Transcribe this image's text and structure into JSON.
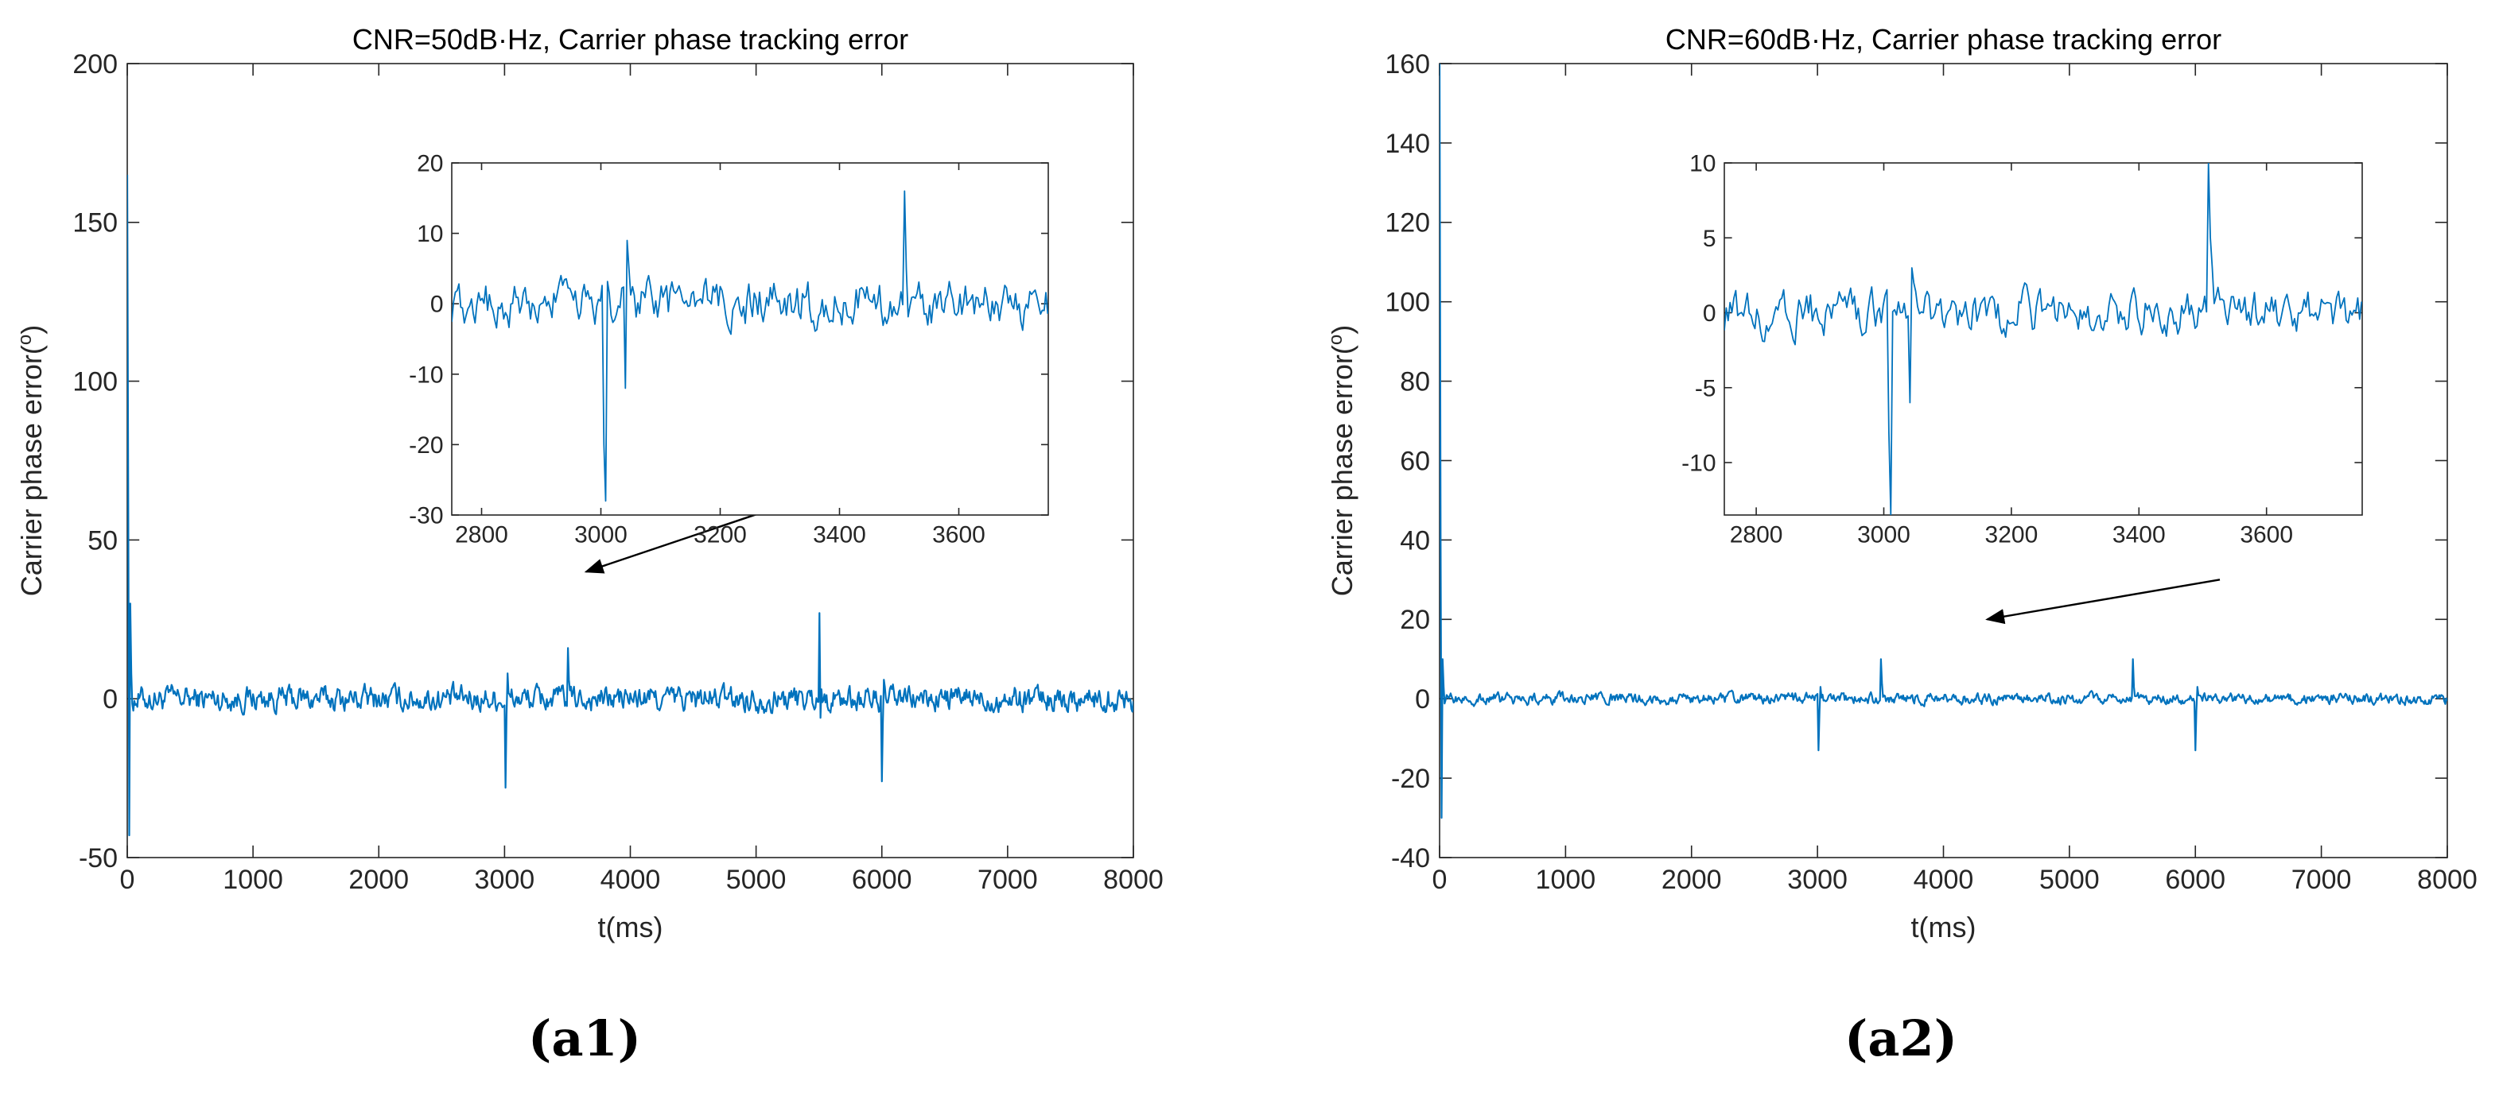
{
  "chart_data": [
    {
      "type": "line",
      "panel_label": "(a1)",
      "title": "CNR=50dB·Hz, Carrier phase tracking error",
      "xlabel": "t(ms)",
      "ylabel": "Carrier phase error(",
      "ylabel_unit": "o",
      "ylabel_suffix": ")",
      "xlim": [
        0,
        8000
      ],
      "ylim": [
        -50,
        200
      ],
      "xticks": [
        0,
        1000,
        2000,
        3000,
        4000,
        5000,
        6000,
        7000,
        8000
      ],
      "yticks": [
        -50,
        0,
        50,
        100,
        150,
        200
      ],
      "grid": false,
      "series_color": "#0072bd",
      "noise_amplitude": 3.2,
      "events": [
        {
          "x": 0,
          "values": [
            165,
            60,
            -43,
            30,
            8
          ]
        },
        {
          "x": 3010,
          "values": [
            -28,
            -5,
            8
          ]
        },
        {
          "x": 3500,
          "values": [
            16,
            6
          ]
        },
        {
          "x": 5500,
          "values": [
            27,
            10,
            3
          ]
        },
        {
          "x": 5510,
          "values": [
            -6
          ]
        },
        {
          "x": 6000,
          "values": [
            -26,
            -8,
            6
          ]
        }
      ],
      "inset": {
        "xlim": [
          2750,
          3750
        ],
        "ylim": [
          -30,
          20
        ],
        "xticks": [
          2800,
          3000,
          3200,
          3400,
          3600
        ],
        "yticks": [
          -30,
          -20,
          -10,
          0,
          10,
          20
        ],
        "events": [
          {
            "x": 3005,
            "values": [
              -20,
              -28
            ]
          },
          {
            "x": 3040,
            "values": [
              -12,
              9,
              5
            ]
          },
          {
            "x": 3510,
            "values": [
              16,
              5
            ]
          }
        ]
      },
      "arrow": {
        "from": [
          3250,
          60
        ],
        "to": [
          2700,
          40
        ]
      }
    },
    {
      "type": "line",
      "panel_label": "(a2)",
      "title": "CNR=60dB·Hz, Carrier phase tracking error",
      "xlabel": "t(ms)",
      "ylabel": "Carrier phase error(",
      "ylabel_unit": "o",
      "ylabel_suffix": ")",
      "xlim": [
        0,
        8000
      ],
      "ylim": [
        -40,
        160
      ],
      "xticks": [
        0,
        1000,
        2000,
        3000,
        4000,
        5000,
        6000,
        7000,
        8000
      ],
      "yticks": [
        -40,
        -20,
        0,
        20,
        40,
        60,
        80,
        100,
        120,
        140,
        160
      ],
      "grid": false,
      "series_color": "#0072bd",
      "noise_amplitude": 1.1,
      "events": [
        {
          "x": 0,
          "values": [
            160,
            40,
            -30,
            10,
            3
          ]
        },
        {
          "x": 3010,
          "values": [
            -13,
            -3,
            3
          ]
        },
        {
          "x": 3500,
          "values": [
            10,
            4
          ]
        },
        {
          "x": 5500,
          "values": [
            10,
            3
          ]
        },
        {
          "x": 6000,
          "values": [
            -13,
            -3,
            3
          ]
        }
      ],
      "inset": {
        "xlim": [
          2750,
          3750
        ],
        "ylim": [
          -13.5,
          10
        ],
        "xticks": [
          2800,
          3000,
          3200,
          3400,
          3600
        ],
        "yticks": [
          -10,
          -5,
          0,
          5,
          10
        ],
        "events": [
          {
            "x": 3008,
            "values": [
              -8,
              -13.5
            ]
          },
          {
            "x": 3040,
            "values": [
              -6,
              3,
              2
            ]
          },
          {
            "x": 3510,
            "values": [
              10,
              5,
              3
            ]
          }
        ]
      },
      "arrow": {
        "from": [
          4300,
          30
        ],
        "to": [
          3400,
          20
        ]
      }
    }
  ]
}
